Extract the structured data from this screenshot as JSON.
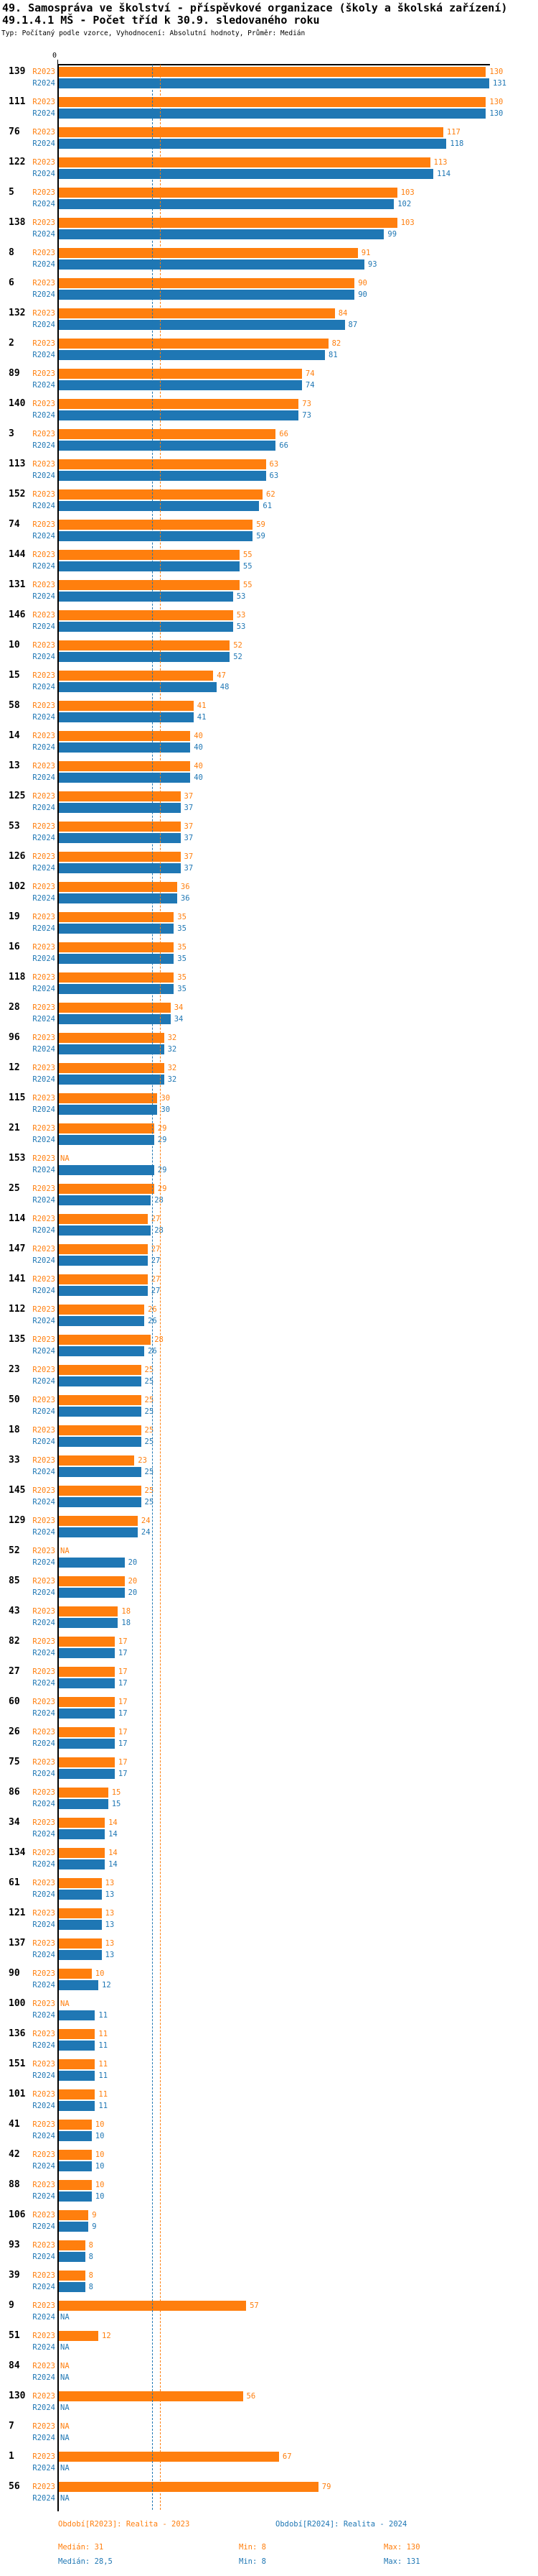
{
  "header": {
    "title_line1": "49. Samospráva ve školství - příspěvkové organizace (školy a školská zařízení)",
    "title_line2": "49.1.4.1 MŠ - Počet tříd k 30.9. sledovaného roku",
    "subtitle": "Typ: Počítaný podle vzorce, Vyhodnocení: Absolutní hodnoty, Průměr: Medián"
  },
  "axis": {
    "zero_label": "0"
  },
  "na_label": "NA",
  "series": [
    {
      "name": "R2023",
      "color": "#ff7f0e",
      "median": 31,
      "period_label": "Období[R2023]: Realita - 2023",
      "median_label": "Medián: 31",
      "min_label": "Min: 8",
      "max_label": "Max: 130"
    },
    {
      "name": "R2024",
      "color": "#1f77b4",
      "median": 28.5,
      "period_label": "Období[R2024]: Realita - 2024",
      "median_label": "Medián: 28,5",
      "min_label": "Min: 8",
      "max_label": "Max: 131"
    }
  ],
  "chart_data": {
    "type": "bar",
    "orientation": "horizontal",
    "title": "49.1.4.1 MŠ - Počet tříd k 30.9. sledovaného roku",
    "xlim": [
      0,
      140
    ],
    "grid": false,
    "legend_position": "bottom",
    "series_names": [
      "R2023",
      "R2024"
    ],
    "median_lines": {
      "R2023": 31,
      "R2024": 28.5
    },
    "groups": [
      {
        "label": "139",
        "R2023": 130,
        "R2024": 131
      },
      {
        "label": "111",
        "R2023": 130,
        "R2024": 130
      },
      {
        "label": "76",
        "R2023": 117,
        "R2024": 118
      },
      {
        "label": "122",
        "R2023": 113,
        "R2024": 114
      },
      {
        "label": "5",
        "R2023": 103,
        "R2024": 102
      },
      {
        "label": "138",
        "R2023": 103,
        "R2024": 99
      },
      {
        "label": "8",
        "R2023": 91,
        "R2024": 93
      },
      {
        "label": "6",
        "R2023": 90,
        "R2024": 90
      },
      {
        "label": "132",
        "R2023": 84,
        "R2024": 87
      },
      {
        "label": "2",
        "R2023": 82,
        "R2024": 81
      },
      {
        "label": "89",
        "R2023": 74,
        "R2024": 74
      },
      {
        "label": "140",
        "R2023": 73,
        "R2024": 73
      },
      {
        "label": "3",
        "R2023": 66,
        "R2024": 66
      },
      {
        "label": "113",
        "R2023": 63,
        "R2024": 63
      },
      {
        "label": "152",
        "R2023": 62,
        "R2024": 61
      },
      {
        "label": "74",
        "R2023": 59,
        "R2024": 59
      },
      {
        "label": "144",
        "R2023": 55,
        "R2024": 55
      },
      {
        "label": "131",
        "R2023": 55,
        "R2024": 53
      },
      {
        "label": "146",
        "R2023": 53,
        "R2024": 53
      },
      {
        "label": "10",
        "R2023": 52,
        "R2024": 52
      },
      {
        "label": "15",
        "R2023": 47,
        "R2024": 48
      },
      {
        "label": "58",
        "R2023": 41,
        "R2024": 41
      },
      {
        "label": "14",
        "R2023": 40,
        "R2024": 40
      },
      {
        "label": "13",
        "R2023": 40,
        "R2024": 40
      },
      {
        "label": "125",
        "R2023": 37,
        "R2024": 37
      },
      {
        "label": "53",
        "R2023": 37,
        "R2024": 37
      },
      {
        "label": "126",
        "R2023": 37,
        "R2024": 37
      },
      {
        "label": "102",
        "R2023": 36,
        "R2024": 36
      },
      {
        "label": "19",
        "R2023": 35,
        "R2024": 35
      },
      {
        "label": "16",
        "R2023": 35,
        "R2024": 35
      },
      {
        "label": "118",
        "R2023": 35,
        "R2024": 35
      },
      {
        "label": "28",
        "R2023": 34,
        "R2024": 34
      },
      {
        "label": "96",
        "R2023": 32,
        "R2024": 32
      },
      {
        "label": "12",
        "R2023": 32,
        "R2024": 32
      },
      {
        "label": "115",
        "R2023": 30,
        "R2024": 30
      },
      {
        "label": "21",
        "R2023": 29,
        "R2024": 29
      },
      {
        "label": "153",
        "R2023": null,
        "R2024": 29
      },
      {
        "label": "25",
        "R2023": 29,
        "R2024": 28
      },
      {
        "label": "114",
        "R2023": 27,
        "R2024": 28
      },
      {
        "label": "147",
        "R2023": 27,
        "R2024": 27
      },
      {
        "label": "141",
        "R2023": 27,
        "R2024": 27
      },
      {
        "label": "112",
        "R2023": 26,
        "R2024": 26
      },
      {
        "label": "135",
        "R2023": 28,
        "R2024": 26
      },
      {
        "label": "23",
        "R2023": 25,
        "R2024": 25
      },
      {
        "label": "50",
        "R2023": 25,
        "R2024": 25
      },
      {
        "label": "18",
        "R2023": 25,
        "R2024": 25
      },
      {
        "label": "33",
        "R2023": 23,
        "R2024": 25
      },
      {
        "label": "145",
        "R2023": 25,
        "R2024": 25
      },
      {
        "label": "129",
        "R2023": 24,
        "R2024": 24
      },
      {
        "label": "52",
        "R2023": null,
        "R2024": 20
      },
      {
        "label": "85",
        "R2023": 20,
        "R2024": 20
      },
      {
        "label": "43",
        "R2023": 18,
        "R2024": 18
      },
      {
        "label": "82",
        "R2023": 17,
        "R2024": 17
      },
      {
        "label": "27",
        "R2023": 17,
        "R2024": 17
      },
      {
        "label": "60",
        "R2023": 17,
        "R2024": 17
      },
      {
        "label": "26",
        "R2023": 17,
        "R2024": 17
      },
      {
        "label": "75",
        "R2023": 17,
        "R2024": 17
      },
      {
        "label": "86",
        "R2023": 15,
        "R2024": 15
      },
      {
        "label": "34",
        "R2023": 14,
        "R2024": 14
      },
      {
        "label": "134",
        "R2023": 14,
        "R2024": 14
      },
      {
        "label": "61",
        "R2023": 13,
        "R2024": 13
      },
      {
        "label": "121",
        "R2023": 13,
        "R2024": 13
      },
      {
        "label": "137",
        "R2023": 13,
        "R2024": 13
      },
      {
        "label": "90",
        "R2023": 10,
        "R2024": 12
      },
      {
        "label": "100",
        "R2023": null,
        "R2024": 11
      },
      {
        "label": "136",
        "R2023": 11,
        "R2024": 11
      },
      {
        "label": "151",
        "R2023": 11,
        "R2024": 11
      },
      {
        "label": "101",
        "R2023": 11,
        "R2024": 11
      },
      {
        "label": "41",
        "R2023": 10,
        "R2024": 10
      },
      {
        "label": "42",
        "R2023": 10,
        "R2024": 10
      },
      {
        "label": "88",
        "R2023": 10,
        "R2024": 10
      },
      {
        "label": "106",
        "R2023": 9,
        "R2024": 9
      },
      {
        "label": "93",
        "R2023": 8,
        "R2024": 8
      },
      {
        "label": "39",
        "R2023": 8,
        "R2024": 8
      },
      {
        "label": "9",
        "R2023": 57,
        "R2024": null
      },
      {
        "label": "51",
        "R2023": 12,
        "R2024": null
      },
      {
        "label": "84",
        "R2023": null,
        "R2024": null
      },
      {
        "label": "130",
        "R2023": 56,
        "R2024": null
      },
      {
        "label": "7",
        "R2023": null,
        "R2024": null
      },
      {
        "label": "1",
        "R2023": 67,
        "R2024": null
      },
      {
        "label": "56",
        "R2023": 79,
        "R2024": null
      }
    ]
  }
}
